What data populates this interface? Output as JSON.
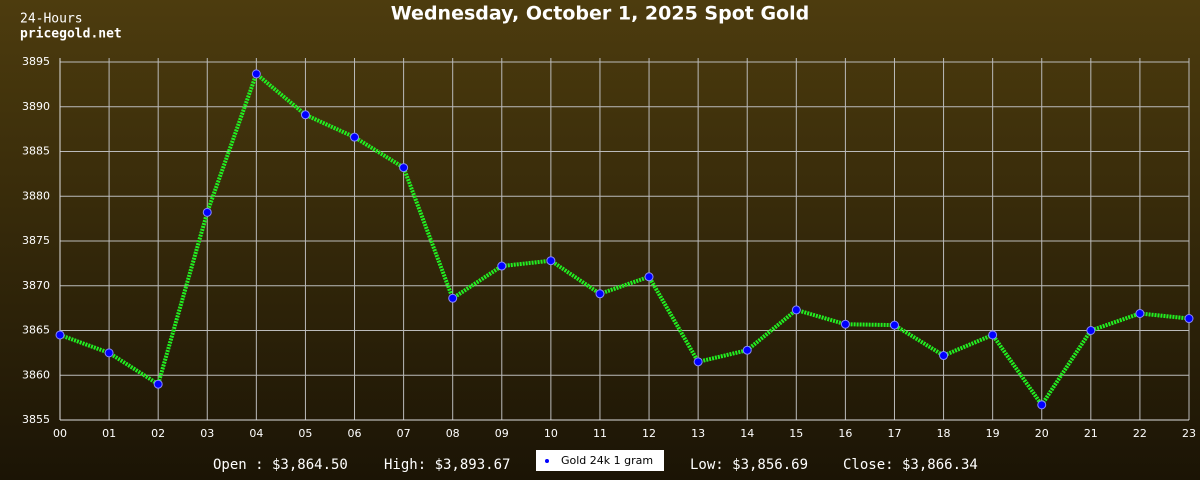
{
  "header": {
    "period": "24-Hours",
    "site": "pricegold.net"
  },
  "chart_data": {
    "type": "line",
    "title": "Wednesday, October 1, 2025 Spot Gold",
    "categories": [
      "00",
      "01",
      "02",
      "03",
      "04",
      "05",
      "06",
      "07",
      "08",
      "09",
      "10",
      "11",
      "12",
      "13",
      "14",
      "15",
      "16",
      "17",
      "18",
      "19",
      "20",
      "21",
      "22",
      "23"
    ],
    "series": [
      {
        "name": "Gold 24k 1 gram",
        "color": "#22ee22",
        "marker_color": "#0000ff",
        "values": [
          3864.5,
          3862.5,
          3859.0,
          3878.2,
          3893.67,
          3889.1,
          3886.6,
          3883.2,
          3868.6,
          3872.2,
          3872.8,
          3869.1,
          3871.0,
          3861.5,
          3862.8,
          3867.3,
          3865.7,
          3865.6,
          3862.2,
          3864.5,
          3856.69,
          3865.0,
          3866.9,
          3866.34
        ]
      }
    ],
    "ylim": [
      3855,
      3895
    ],
    "yticks": [
      3855,
      3860,
      3865,
      3870,
      3875,
      3880,
      3885,
      3890,
      3895
    ],
    "grid": true
  },
  "stats": {
    "open": "Open : $3,864.50",
    "high": "High: $3,893.67",
    "low": "Low: $3,856.69",
    "close": "Close: $3,866.34"
  }
}
